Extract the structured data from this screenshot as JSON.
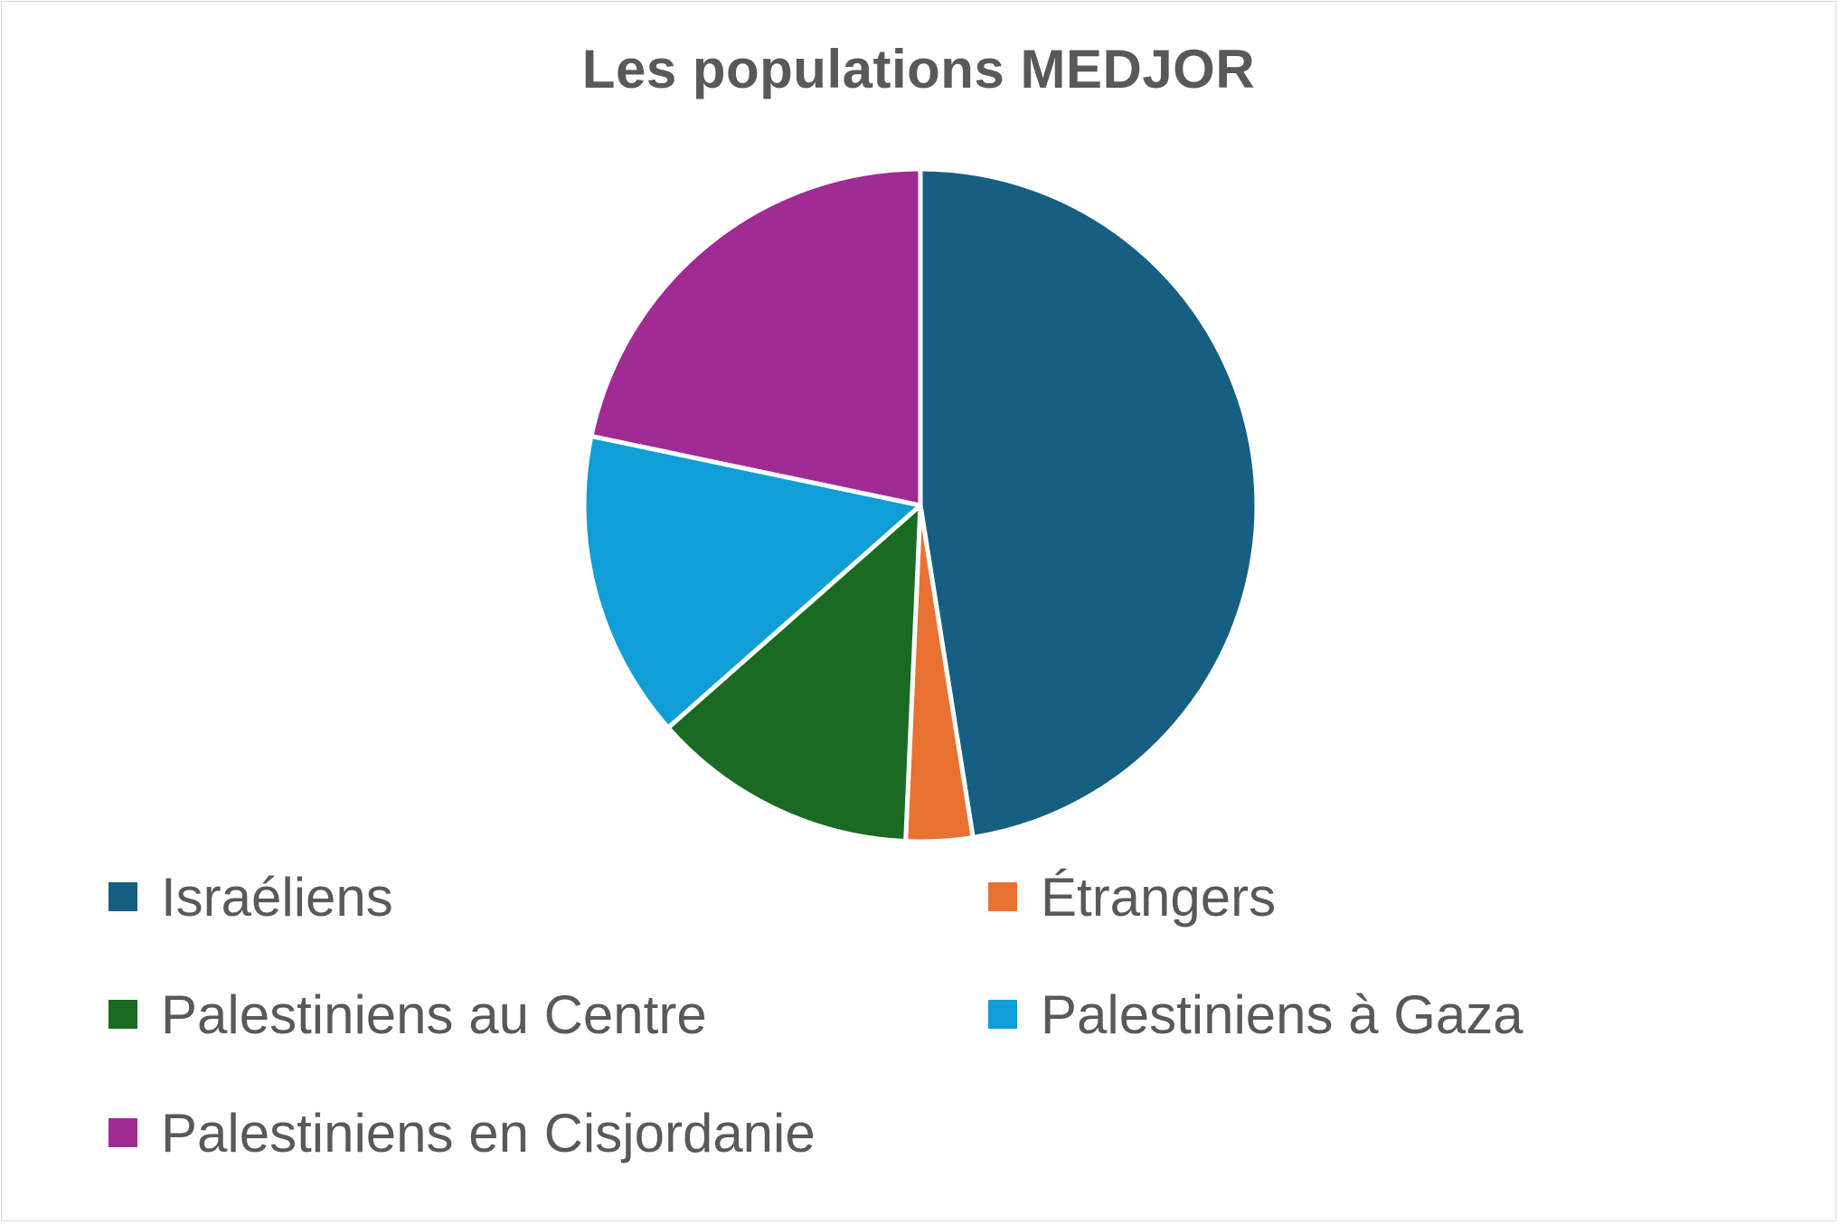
{
  "chart_data": {
    "type": "pie",
    "title": "Les populations MEDJOR",
    "legend_position": "bottom",
    "slices": [
      {
        "label": "Israéliens",
        "value": 47.5,
        "color": "#175f82"
      },
      {
        "label": "Étrangers",
        "value": 3.2,
        "color": "#e97132"
      },
      {
        "label": "Palestiniens au Centre",
        "value": 12.8,
        "color": "#196b24"
      },
      {
        "label": "Palestiniens à Gaza",
        "value": 14.8,
        "color": "#109ed7"
      },
      {
        "label": "Palestiniens en Cisjordanie",
        "value": 21.7,
        "color": "#a02b93"
      }
    ]
  }
}
